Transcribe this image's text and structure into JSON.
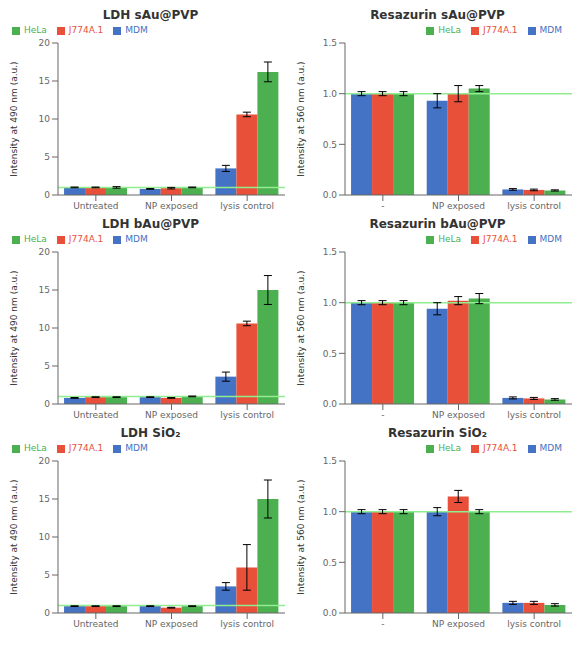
{
  "chart_data": [
    {
      "type": "bar",
      "title": "LDH sAu@PVP",
      "ylabel": "Intensity at 490 nm (a.u.)",
      "categories": [
        "Untreated",
        "NP exposed",
        "lysis control"
      ],
      "series": [
        {
          "name": "MDM",
          "color": "#4472C4",
          "values": [
            1.0,
            0.8,
            3.5
          ],
          "errors": [
            0.05,
            0.05,
            0.4
          ]
        },
        {
          "name": "J774A.1",
          "color": "#E8503A",
          "values": [
            1.0,
            0.9,
            10.6
          ],
          "errors": [
            0.05,
            0.1,
            0.3
          ]
        },
        {
          "name": "HeLa",
          "color": "#4CAF50",
          "values": [
            1.0,
            1.0,
            16.2
          ],
          "errors": [
            0.1,
            0.05,
            1.3
          ]
        }
      ],
      "ylim": [
        0,
        20
      ],
      "yticks": [
        0,
        5,
        10,
        15,
        20
      ],
      "reference_line": {
        "value": 1.0,
        "color": "#90EE90"
      },
      "legend": "upper left",
      "grid": false
    },
    {
      "type": "bar",
      "title": "Resazurin sAu@PVP",
      "ylabel": "Intensity at 560 nm (a.u.)",
      "categories": [
        "-",
        "NP exposed",
        "lysis control"
      ],
      "series": [
        {
          "name": "MDM",
          "color": "#4472C4",
          "values": [
            1.0,
            0.93,
            0.055
          ],
          "errors": [
            0.02,
            0.07,
            0.008
          ]
        },
        {
          "name": "J774A.1",
          "color": "#E8503A",
          "values": [
            1.0,
            1.0,
            0.05
          ],
          "errors": [
            0.02,
            0.08,
            0.008
          ]
        },
        {
          "name": "HeLa",
          "color": "#4CAF50",
          "values": [
            1.0,
            1.05,
            0.045
          ],
          "errors": [
            0.02,
            0.03,
            0.006
          ]
        }
      ],
      "ylim": [
        0,
        1.5
      ],
      "yticks": [
        {
          "value": 0,
          "label": "0.0"
        },
        0.5,
        {
          "value": 1,
          "label": "1.0"
        },
        1.5
      ],
      "reference_line": {
        "value": 1.0,
        "color": "#90EE90"
      },
      "legend": "upper right",
      "grid": false
    },
    {
      "type": "bar",
      "title": "LDH bAu@PVP",
      "ylabel": "Intensity at 490 nm (a.u.)",
      "categories": [
        "Untreated",
        "NP exposed",
        "lysis control"
      ],
      "series": [
        {
          "name": "MDM",
          "color": "#4472C4",
          "values": [
            0.8,
            0.9,
            3.6
          ],
          "errors": [
            0.05,
            0.05,
            0.6
          ]
        },
        {
          "name": "J774A.1",
          "color": "#E8503A",
          "values": [
            0.9,
            0.8,
            10.6
          ],
          "errors": [
            0.05,
            0.05,
            0.3
          ]
        },
        {
          "name": "HeLa",
          "color": "#4CAF50",
          "values": [
            0.9,
            1.0,
            15.0
          ],
          "errors": [
            0.05,
            0.05,
            1.9
          ]
        }
      ],
      "ylim": [
        0,
        20
      ],
      "yticks": [
        0,
        5,
        10,
        15,
        20
      ],
      "reference_line": {
        "value": 1.0,
        "color": "#90EE90"
      },
      "legend": "upper left",
      "grid": false
    },
    {
      "type": "bar",
      "title": "Resazurin bAu@PVP",
      "ylabel": "Intensity at 560 nm (a.u.)",
      "categories": [
        "-",
        "NP exposed",
        "lysis control"
      ],
      "series": [
        {
          "name": "MDM",
          "color": "#4472C4",
          "values": [
            1.0,
            0.94,
            0.06
          ],
          "errors": [
            0.02,
            0.06,
            0.01
          ]
        },
        {
          "name": "J774A.1",
          "color": "#E8503A",
          "values": [
            1.0,
            1.02,
            0.055
          ],
          "errors": [
            0.02,
            0.04,
            0.01
          ]
        },
        {
          "name": "HeLa",
          "color": "#4CAF50",
          "values": [
            1.0,
            1.04,
            0.045
          ],
          "errors": [
            0.02,
            0.05,
            0.008
          ]
        }
      ],
      "ylim": [
        0,
        1.5
      ],
      "yticks": [
        {
          "value": 0,
          "label": "0.0"
        },
        0.5,
        {
          "value": 1,
          "label": "1.0"
        },
        1.5
      ],
      "reference_line": {
        "value": 1.0,
        "color": "#90EE90"
      },
      "legend": "upper right",
      "grid": false
    },
    {
      "type": "bar",
      "title": "LDH SiO₂",
      "ylabel": "Intensity at 490 nm (a.u.)",
      "categories": [
        "Untreated",
        "NP exposed",
        "lysis control"
      ],
      "series": [
        {
          "name": "MDM",
          "color": "#4472C4",
          "values": [
            0.9,
            0.9,
            3.5
          ],
          "errors": [
            0.05,
            0.05,
            0.5
          ]
        },
        {
          "name": "J774A.1",
          "color": "#E8503A",
          "values": [
            0.9,
            0.7,
            6.0
          ],
          "errors": [
            0.05,
            0.05,
            3.0
          ]
        },
        {
          "name": "HeLa",
          "color": "#4CAF50",
          "values": [
            0.9,
            0.9,
            15.0
          ],
          "errors": [
            0.05,
            0.05,
            2.5
          ]
        }
      ],
      "ylim": [
        0,
        20
      ],
      "yticks": [
        0,
        5,
        10,
        15,
        20
      ],
      "reference_line": {
        "value": 1.0,
        "color": "#90EE90"
      },
      "legend": "upper left",
      "grid": false
    },
    {
      "type": "bar",
      "title": "Resazurin SiO₂",
      "ylabel": "Intensity at 560 nm (a.u.)",
      "categories": [
        "-",
        "NP exposed",
        "lysis control"
      ],
      "series": [
        {
          "name": "MDM",
          "color": "#4472C4",
          "values": [
            1.0,
            1.0,
            0.1
          ],
          "errors": [
            0.02,
            0.04,
            0.015
          ]
        },
        {
          "name": "J774A.1",
          "color": "#E8503A",
          "values": [
            1.0,
            1.15,
            0.1
          ],
          "errors": [
            0.02,
            0.06,
            0.015
          ]
        },
        {
          "name": "HeLa",
          "color": "#4CAF50",
          "values": [
            1.0,
            1.0,
            0.08
          ],
          "errors": [
            0.02,
            0.02,
            0.012
          ]
        }
      ],
      "ylim": [
        0,
        1.5
      ],
      "yticks": [
        {
          "value": 0,
          "label": "0.0"
        },
        0.5,
        {
          "value": 1,
          "label": "1.0"
        },
        1.5
      ],
      "reference_line": {
        "value": 1.0,
        "color": "#90EE90"
      },
      "legend": "upper right",
      "grid": false
    }
  ]
}
